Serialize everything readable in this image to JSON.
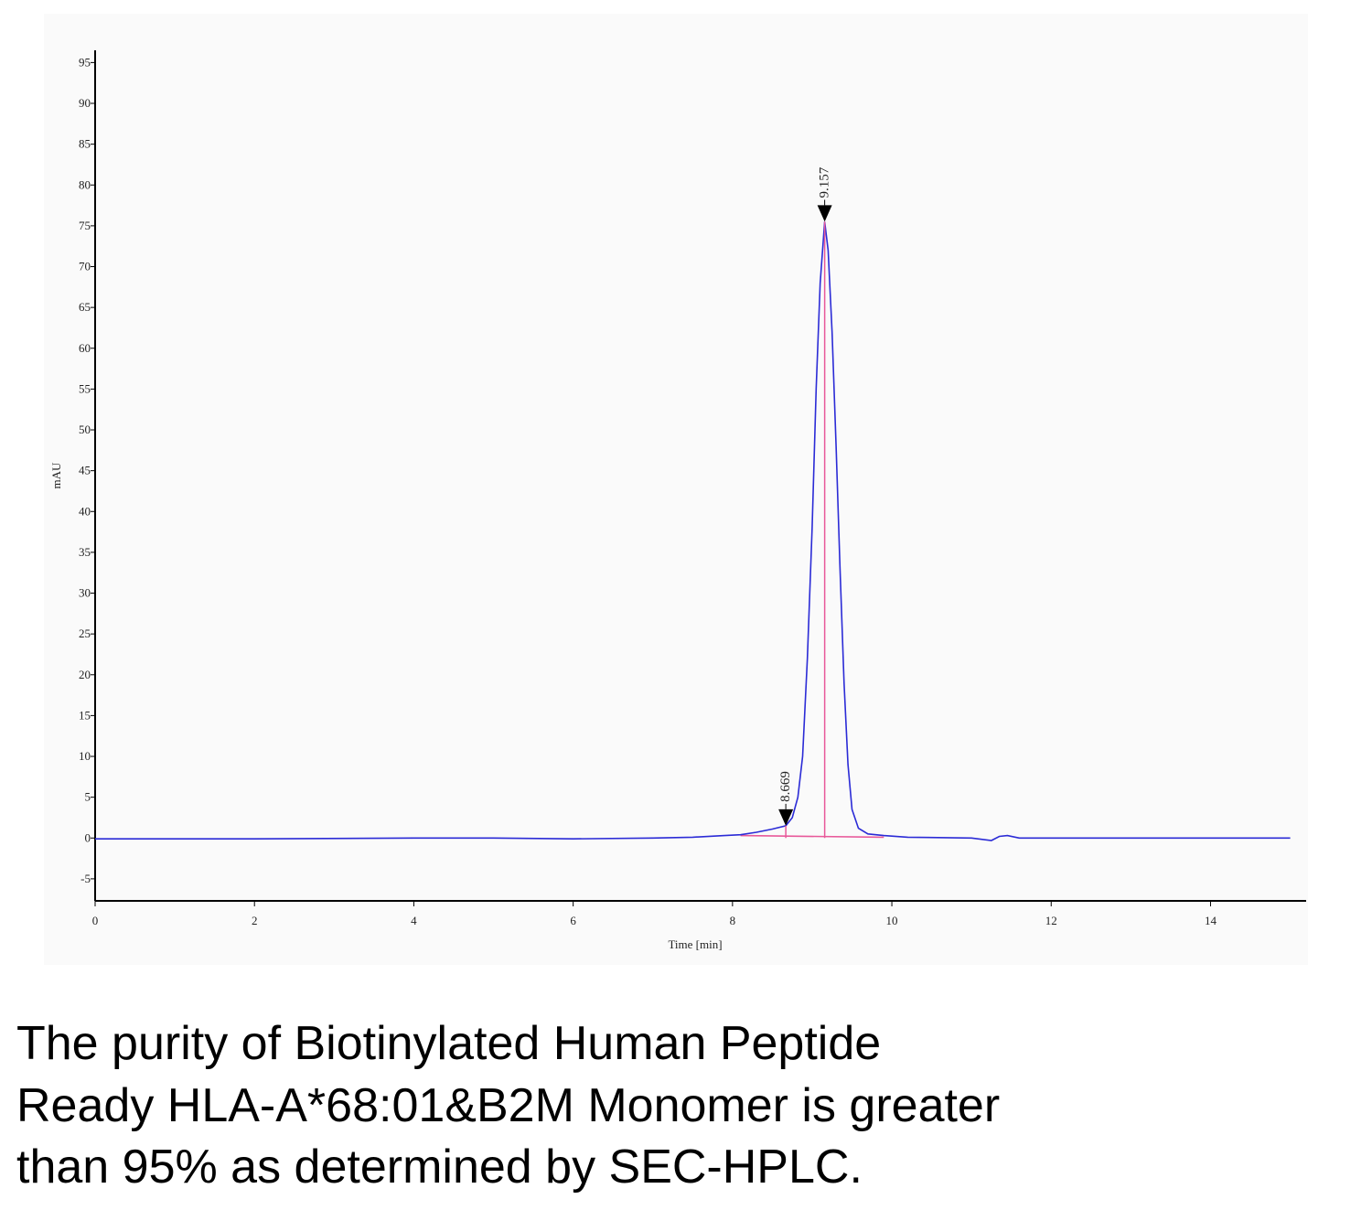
{
  "chart_data": {
    "type": "line",
    "y_label": "mAU",
    "x_label": "Time [min]",
    "xlim": [
      0,
      15.2
    ],
    "ylim": [
      -7.7,
      96.5
    ],
    "xticks": [
      0,
      2,
      4,
      6,
      8,
      10,
      12,
      14
    ],
    "yticks": [
      -5,
      0,
      5,
      10,
      15,
      20,
      25,
      30,
      35,
      40,
      45,
      50,
      55,
      60,
      65,
      70,
      75,
      80,
      85,
      90,
      95
    ],
    "series": [
      {
        "color": "#2b2bd6",
        "x": [
          0,
          2,
          4,
          5,
          6,
          7,
          7.5,
          7.9,
          8.1,
          8.3,
          8.5,
          8.669,
          8.75,
          8.82,
          8.88,
          8.94,
          9.0,
          9.05,
          9.1,
          9.157,
          9.2,
          9.25,
          9.3,
          9.35,
          9.4,
          9.45,
          9.5,
          9.58,
          9.7,
          9.9,
          10.2,
          11.0,
          11.25,
          11.35,
          11.45,
          11.6,
          12.5,
          15.0
        ],
        "values": [
          -0.1,
          -0.1,
          0,
          0,
          -0.1,
          0,
          0.1,
          0.3,
          0.4,
          0.7,
          1.1,
          1.5,
          2.5,
          5,
          10,
          22,
          38,
          55,
          68,
          75.5,
          72,
          62,
          48,
          33,
          19,
          9,
          3.5,
          1.2,
          0.5,
          0.3,
          0.1,
          0,
          -0.3,
          0.2,
          0.3,
          0,
          0,
          0
        ]
      }
    ],
    "integration_baseline": {
      "color": "#e8599a",
      "x": [
        8.1,
        9.9
      ],
      "values": [
        0.3,
        0.1
      ]
    },
    "peaks": [
      {
        "time": 8.669,
        "height": 1.5
      },
      {
        "time": 9.157,
        "height": 75.5
      }
    ]
  },
  "caption": [
    "The purity of Biotinylated Human Peptide",
    "Ready HLA-A*68:01&B2M Monomer is greater",
    "than 95% as determined by SEC-HPLC."
  ]
}
